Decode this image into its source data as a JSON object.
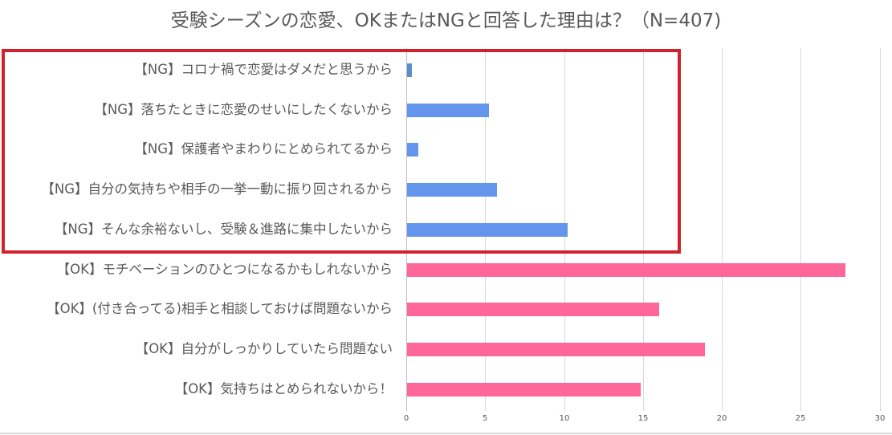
{
  "chart_data": {
    "type": "bar",
    "orientation": "horizontal",
    "title": "受験シーズンの恋愛、OKまたはNGと回答した理由は？（N=407)",
    "xlabel": "",
    "ylabel": "",
    "xlim": [
      0,
      30
    ],
    "xticks": [
      "0",
      "5",
      "10",
      "15",
      "20",
      "25",
      "30"
    ],
    "grid": true,
    "legend": "none",
    "categories": [
      "【NG】コロナ禍で恋愛はダメだと思うから",
      "【NG】落ちたときに恋愛のせいにしたくないから",
      "【NG】保護者やまわりにとめられてるから",
      "【NG】自分の気持ちや相手の一挙一動に振り回されるから",
      "【NG】そんな余裕ないし、受験＆進路に集中したいから",
      "【OK】モチベーションのひとつになるかもしれないから",
      "【OK】(付き合ってる)相手と相談しておけば問題ないから",
      "【OK】自分がしっかりしていたら問題ない",
      "【OK】気持ちはとめられないから！"
    ],
    "values": [
      0.3,
      5.2,
      0.7,
      5.7,
      10.2,
      27.8,
      16.0,
      18.9,
      14.8
    ],
    "bar_colors": [
      "#5b8fc9",
      "#6495ed",
      "#6495ed",
      "#6495ed",
      "#6495ed",
      "#ff6699",
      "#ff6699",
      "#ff6699",
      "#ff6699"
    ],
    "annotations": [
      {
        "type": "highlight-box",
        "color": "#d0222d",
        "covers": "NG categories"
      }
    ]
  },
  "colors": {
    "ng": "#6495ed",
    "ng_first": "#5b8fc9",
    "ok": "#ff6699",
    "highlight": "#d0222d",
    "grid": "#d9d9d9",
    "text": "#595959"
  }
}
